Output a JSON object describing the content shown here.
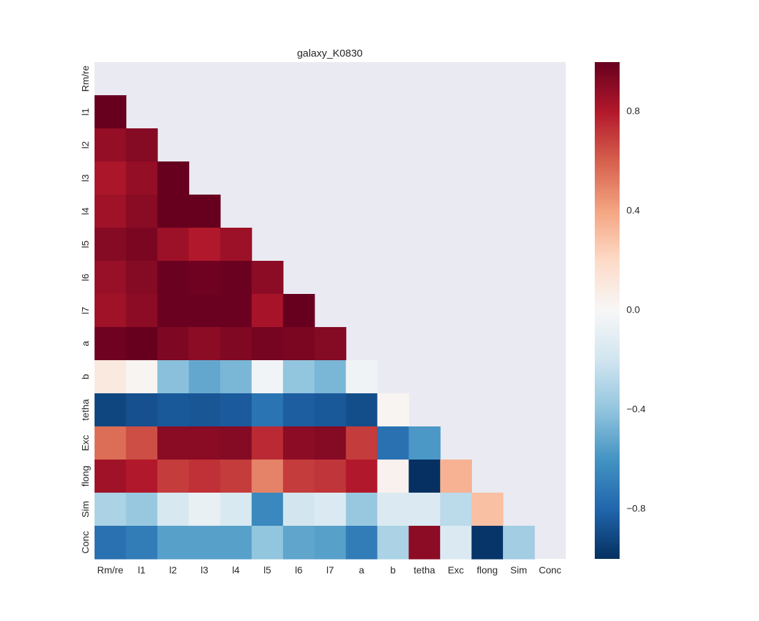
{
  "chart_data": {
    "type": "heatmap",
    "title": "galaxy_K0830",
    "xlabel": "",
    "ylabel": "",
    "labels": [
      "Rm/re",
      "l1",
      "l2",
      "l3",
      "l4",
      "l5",
      "l6",
      "l7",
      "a",
      "b",
      "tetha",
      "Exc",
      "flong",
      "Sim",
      "Conc"
    ],
    "mask": "upper-triangle-and-diagonal",
    "matrix": [
      [
        null,
        null,
        null,
        null,
        null,
        null,
        null,
        null,
        null,
        null,
        null,
        null,
        null,
        null,
        null
      ],
      [
        1.0,
        null,
        null,
        null,
        null,
        null,
        null,
        null,
        null,
        null,
        null,
        null,
        null,
        null,
        null
      ],
      [
        0.88,
        0.92,
        null,
        null,
        null,
        null,
        null,
        null,
        null,
        null,
        null,
        null,
        null,
        null,
        null
      ],
      [
        0.82,
        0.88,
        1.0,
        null,
        null,
        null,
        null,
        null,
        null,
        null,
        null,
        null,
        null,
        null,
        null
      ],
      [
        0.85,
        0.91,
        1.0,
        1.0,
        null,
        null,
        null,
        null,
        null,
        null,
        null,
        null,
        null,
        null,
        null
      ],
      [
        0.92,
        0.95,
        0.86,
        0.8,
        0.86,
        null,
        null,
        null,
        null,
        null,
        null,
        null,
        null,
        null,
        null
      ],
      [
        0.87,
        0.92,
        0.99,
        0.98,
        0.99,
        0.9,
        null,
        null,
        null,
        null,
        null,
        null,
        null,
        null,
        null
      ],
      [
        0.85,
        0.9,
        0.99,
        0.99,
        0.99,
        0.83,
        1.0,
        null,
        null,
        null,
        null,
        null,
        null,
        null,
        null
      ],
      [
        0.98,
        1.0,
        0.94,
        0.9,
        0.93,
        0.96,
        0.95,
        0.92,
        null,
        null,
        null,
        null,
        null,
        null,
        null
      ],
      [
        0.1,
        0.02,
        -0.42,
        -0.52,
        -0.46,
        -0.03,
        -0.4,
        -0.46,
        -0.04,
        null,
        null,
        null,
        null,
        null,
        null
      ],
      [
        -0.92,
        -0.88,
        -0.85,
        -0.86,
        -0.84,
        -0.74,
        -0.83,
        -0.85,
        -0.89,
        0.02,
        null,
        null,
        null,
        null,
        null
      ],
      [
        0.56,
        0.65,
        0.91,
        0.91,
        0.92,
        0.75,
        0.9,
        0.92,
        0.7,
        -0.75,
        -0.58,
        null,
        null,
        null,
        null
      ],
      [
        0.85,
        0.8,
        0.7,
        0.73,
        0.7,
        0.5,
        0.7,
        0.72,
        0.8,
        0.04,
        -1.0,
        0.35,
        null,
        null,
        null
      ],
      [
        -0.32,
        -0.38,
        -0.17,
        -0.08,
        -0.16,
        -0.65,
        -0.19,
        -0.15,
        -0.38,
        -0.15,
        -0.15,
        -0.27,
        0.3,
        null,
        null
      ],
      [
        -0.75,
        -0.7,
        -0.55,
        -0.55,
        -0.55,
        -0.4,
        -0.53,
        -0.55,
        -0.7,
        -0.32,
        0.9,
        -0.15,
        -0.98,
        -0.35,
        null
      ]
    ],
    "colorbar": {
      "range": [
        -1.0,
        1.0
      ],
      "ticks": [
        "0.8",
        "0.4",
        "0.0",
        "−0.4",
        "−0.8"
      ],
      "tick_values": [
        0.8,
        0.4,
        0.0,
        -0.4,
        -0.8
      ],
      "colormap": "RdBu_r"
    },
    "grid": false,
    "background_color": "#EAEAF2"
  }
}
